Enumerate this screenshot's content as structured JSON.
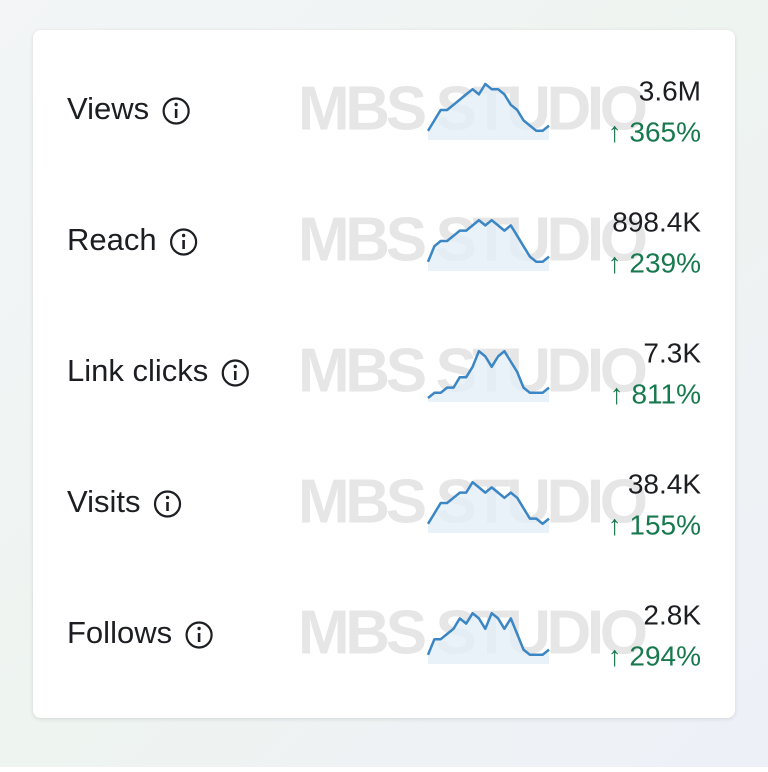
{
  "watermark": "MBS STUDIO",
  "metrics": [
    {
      "label": "Views",
      "value": "3.6M",
      "change": "↑ 365%",
      "trend": [
        1,
        3,
        5,
        5,
        6,
        7,
        8,
        9,
        8,
        10,
        9,
        9,
        8,
        6,
        5,
        3,
        2,
        1,
        1,
        2
      ]
    },
    {
      "label": "Reach",
      "value": "898.4K",
      "change": "↑ 239%",
      "trend": [
        1,
        4,
        5,
        5,
        6,
        7,
        7,
        8,
        9,
        8,
        9,
        8,
        7,
        8,
        6,
        4,
        2,
        1,
        1,
        2
      ]
    },
    {
      "label": "Link clicks",
      "value": "7.3K",
      "change": "↑ 811%",
      "trend": [
        0,
        1,
        1,
        2,
        2,
        4,
        4,
        6,
        9,
        8,
        6,
        8,
        9,
        7,
        5,
        2,
        1,
        1,
        1,
        2
      ]
    },
    {
      "label": "Visits",
      "value": "38.4K",
      "change": "↑ 155%",
      "trend": [
        1,
        3,
        5,
        5,
        6,
        7,
        7,
        9,
        8,
        7,
        8,
        7,
        6,
        7,
        6,
        4,
        2,
        2,
        1,
        2
      ]
    },
    {
      "label": "Follows",
      "value": "2.8K",
      "change": "↑ 294%",
      "trend": [
        1,
        4,
        4,
        5,
        6,
        8,
        7,
        9,
        8,
        6,
        9,
        8,
        6,
        8,
        5,
        2,
        1,
        1,
        1,
        2
      ]
    }
  ]
}
